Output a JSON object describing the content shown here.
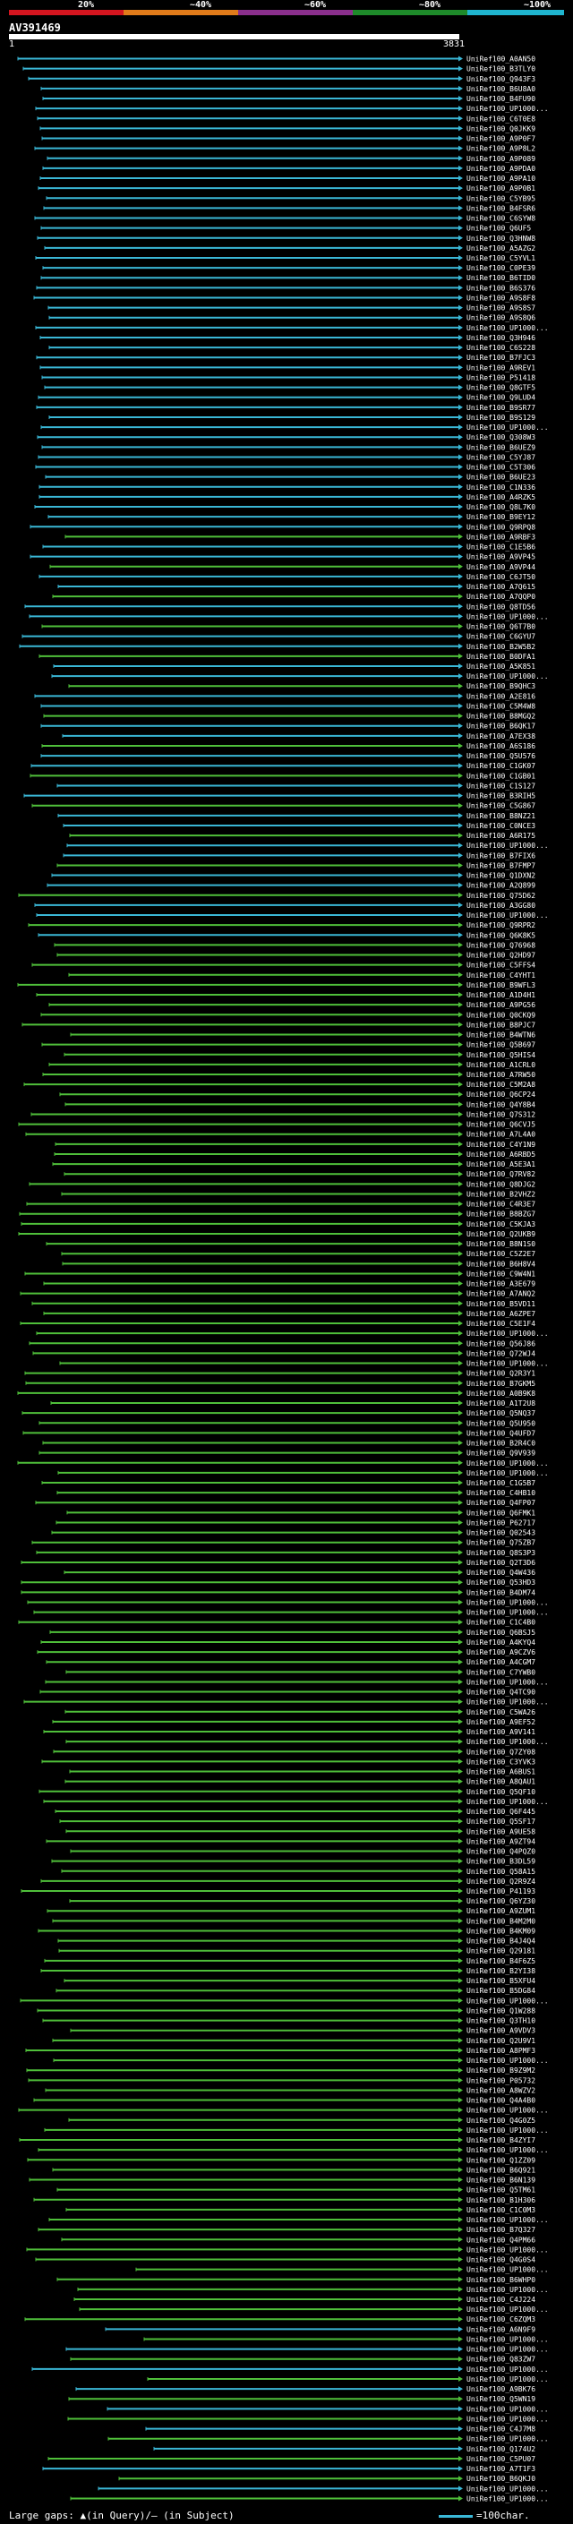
{
  "ruler": {
    "labels": [
      "20%",
      "~40%",
      "~60%",
      "~80%",
      "~100%"
    ],
    "colors": [
      "#d4151f",
      "#e07b1a",
      "#8a2f8c",
      "#1e8a2a",
      "#1fb5cf"
    ]
  },
  "query": {
    "id": "AV391469",
    "start": "1",
    "end": "3831"
  },
  "colors": {
    "cyan": "#3ab7d6",
    "green": "#4fbf3a",
    "white": "#ffffff"
  },
  "hits": [
    "UniRef100_A0AN50",
    "UniRef100_B3TLY0",
    "UniRef100_Q943F3",
    "UniRef100_B6U8A0",
    "UniRef100_B4FU90",
    "UniRef100_UP1000...",
    "UniRef100_C6T0E8",
    "UniRef100_Q0JKK9",
    "UniRef100_A9P0F7",
    "UniRef100_A9P8L2",
    "UniRef100_A9P089",
    "UniRef100_A9PDA0",
    "UniRef100_A9PA10",
    "UniRef100_A9P0B1",
    "UniRef100_C5YB95",
    "UniRef100_B4FSR6",
    "UniRef100_C6SYW8",
    "UniRef100_Q6UF5",
    "UniRef100_Q3HNW8",
    "UniRef100_A5AZG2",
    "UniRef100_C5YVL1",
    "UniRef100_C0PE39",
    "UniRef100_B6TID0",
    "UniRef100_B6S376",
    "UniRef100_A9S8F8",
    "UniRef100_A9S8S7",
    "UniRef100_A9S8Q6",
    "UniRef100_UP1000...",
    "UniRef100_Q3H946",
    "UniRef100_C6S228",
    "UniRef100_B7FJC3",
    "UniRef100_A9REV1",
    "UniRef100_P51418",
    "UniRef100_Q8GTF5",
    "UniRef100_Q9LUD4",
    "UniRef100_B9SR77",
    "UniRef100_B9S129",
    "UniRef100_UP1000...",
    "UniRef100_Q308W3",
    "UniRef100_B6UEZ9",
    "UniRef100_C5YJ87",
    "UniRef100_C5T306",
    "UniRef100_B6UE23",
    "UniRef100_C1N336",
    "UniRef100_A4RZK5",
    "UniRef100_Q8L7K0",
    "UniRef100_B9EY12",
    "UniRef100_Q9RPQ8",
    "UniRef100_A9RBF3",
    "UniRef100_C1E5B6",
    "UniRef100_A9VP45",
    "UniRef100_A9VP44",
    "UniRef100_C6JT50",
    "UniRef100_A7Q615",
    "UniRef100_A7QQP0",
    "UniRef100_Q8TD56",
    "UniRef100_UP1000...",
    "UniRef100_Q6T7B0",
    "UniRef100_C6GYU7",
    "UniRef100_B2W5B2",
    "UniRef100_B0DFA1",
    "UniRef100_A5K851",
    "UniRef100_UP1000...",
    "UniRef100_B9QHC3",
    "UniRef100_A2E816",
    "UniRef100_C5M4W8",
    "UniRef100_B8MGQ2",
    "UniRef100_B6QK17",
    "UniRef100_A7EX38",
    "UniRef100_A6S186",
    "UniRef100_Q5U576",
    "UniRef100_C1GK07",
    "UniRef100_C1GB01",
    "UniRef100_C1S127",
    "UniRef100_B3RIH5",
    "UniRef100_C5G867",
    "UniRef100_B8NZ21",
    "UniRef100_C0NCE3",
    "UniRef100_A6R175",
    "UniRef100_UP1000...",
    "UniRef100_B7FIX6",
    "UniRef100_B7FMP7",
    "UniRef100_Q1DXN2",
    "UniRef100_A2Q899",
    "UniRef100_Q75D62",
    "UniRef100_A3GG80",
    "UniRef100_UP1000...",
    "UniRef100_Q9RPR2",
    "UniRef100_Q6K8K5",
    "UniRef100_Q76968",
    "UniRef100_Q2HD97",
    "UniRef100_C5FFS4",
    "UniRef100_C4YHT1",
    "UniRef100_B9WFL3",
    "UniRef100_A1D4H1",
    "UniRef100_A9PG56",
    "UniRef100_Q0CKQ9",
    "UniRef100_B8PJC7",
    "UniRef100_B4WTN6",
    "UniRef100_Q5B697",
    "UniRef100_Q5HIS4",
    "UniRef100_A1CRL0",
    "UniRef100_A7RW50",
    "UniRef100_C5M2A8",
    "UniRef100_Q6CP24",
    "UniRef100_Q4Y8B4",
    "UniRef100_Q7S312",
    "UniRef100_Q6CVJ5",
    "UniRef100_A7L4A0",
    "UniRef100_C4Y1N9",
    "UniRef100_A6RBD5",
    "UniRef100_A5E3A1",
    "UniRef100_Q7RV82",
    "UniRef100_Q8DJG2",
    "UniRef100_B2VHZ2",
    "UniRef100_C4R3E7",
    "UniRef100_B8BZG7",
    "UniRef100_C5KJA3",
    "UniRef100_Q2UKB9",
    "UniRef100_B8N1S0",
    "UniRef100_C5Z2E7",
    "UniRef100_B6H8V4",
    "UniRef100_C9W4N1",
    "UniRef100_A3E679",
    "UniRef100_A7ANQ2",
    "UniRef100_B5VD11",
    "UniRef100_A6ZPE7",
    "UniRef100_C5E1F4",
    "UniRef100_UP1000...",
    "UniRef100_Q56J86",
    "UniRef100_Q72WJ4",
    "UniRef100_UP1000...",
    "UniRef100_Q2R3Y1",
    "UniRef100_B7GKM5",
    "UniRef100_A0B9K8",
    "UniRef100_A1T2U8",
    "UniRef100_Q5NQ37",
    "UniRef100_Q5U950",
    "UniRef100_Q4UFD7",
    "UniRef100_B2R4C0",
    "UniRef100_Q9V939",
    "UniRef100_UP1000...",
    "UniRef100_UP1000...",
    "UniRef100_C1G5B7",
    "UniRef100_C4HB10",
    "UniRef100_Q4FP07",
    "UniRef100_Q6FMK1",
    "UniRef100_P62717",
    "UniRef100_Q02543",
    "UniRef100_Q75ZB7",
    "UniRef100_Q8S3P3",
    "UniRef100_Q2T3D6",
    "UniRef100_Q4W436",
    "UniRef100_Q53HD3",
    "UniRef100_B4DM74",
    "UniRef100_UP1000...",
    "UniRef100_UP1000...",
    "UniRef100_C1C4B0",
    "UniRef100_Q6BSJ5",
    "UniRef100_A4KYQ4",
    "UniRef100_A9CZV6",
    "UniRef100_A4CGM7",
    "UniRef100_C7YWB0",
    "UniRef100_UP1000...",
    "UniRef100_Q4TC90",
    "UniRef100_UP1000...",
    "UniRef100_C5WA26",
    "UniRef100_A9EF52",
    "UniRef100_A9V141",
    "UniRef100_UP1000...",
    "UniRef100_Q7ZY08",
    "UniRef100_C3YVK3",
    "UniRef100_A6BUS1",
    "UniRef100_A8QAU1",
    "UniRef100_Q5QF10",
    "UniRef100_UP1000...",
    "UniRef100_Q6F445",
    "UniRef100_Q5SF17",
    "UniRef100_A9UE58",
    "UniRef100_A9ZT94",
    "UniRef100_Q4PQZ0",
    "UniRef100_B3DL59",
    "UniRef100_Q58A15",
    "UniRef100_Q2R9Z4",
    "UniRef100_P41193",
    "UniRef100_Q6YZ30",
    "UniRef100_A9ZUM1",
    "UniRef100_B4M2M0",
    "UniRef100_B4KM09",
    "UniRef100_B4J4Q4",
    "UniRef100_Q29181",
    "UniRef100_B4F6Z5",
    "UniRef100_B2YI38",
    "UniRef100_B5XFU4",
    "UniRef100_B5DG84",
    "UniRef100_UP1000...",
    "UniRef100_Q1W288",
    "UniRef100_Q3TH10",
    "UniRef100_A9VDV3",
    "UniRef100_Q2U9V1",
    "UniRef100_A8PMF3",
    "UniRef100_UP1000...",
    "UniRef100_B9Z9M2",
    "UniRef100_P05732",
    "UniRef100_A8WZV2",
    "UniRef100_Q4A4B0",
    "UniRef100_UP1000...",
    "UniRef100_Q4G0Z5",
    "UniRef100_UP1000...",
    "UniRef100_B4ZYI7",
    "UniRef100_UP1000...",
    "UniRef100_Q1ZZ09",
    "UniRef100_B6Q921",
    "UniRef100_B6N139",
    "UniRef100_Q5TM61",
    "UniRef100_B1H306",
    "UniRef100_C1C0M3",
    "UniRef100_UP1000...",
    "UniRef100_B7Q327",
    "UniRef100_Q4PM66",
    "UniRef100_UP1000...",
    "UniRef100_Q4G0S4",
    "UniRef100_UP1000...",
    "UniRef100_B6WHP0",
    "UniRef100_UP1000...",
    "UniRef100_C4J224",
    "UniRef100_UP1000...",
    "UniRef100_C6ZQM3",
    "UniRef100_A6N9F9",
    "UniRef100_UP1000...",
    "UniRef100_UP1000...",
    "UniRef100_Q83ZW7",
    "UniRef100_UP1000...",
    "UniRef100_UP1000...",
    "UniRef100_A9BK76",
    "UniRef100_Q5WN19",
    "UniRef100_UP1000...",
    "UniRef100_UP1000...",
    "UniRef100_C4J7M8",
    "UniRef100_UP1000...",
    "UniRef100_Q174U2",
    "UniRef100_C5PU07",
    "UniRef100_A7T1F3",
    "UniRef100_B6QKJ0",
    "UniRef100_UP1000...",
    "UniRef100_UP1000..."
  ],
  "legend": {
    "gaps_text": "Large gaps: ▲(in Query)/– (in Subject)",
    "scale_text": "=100char."
  }
}
